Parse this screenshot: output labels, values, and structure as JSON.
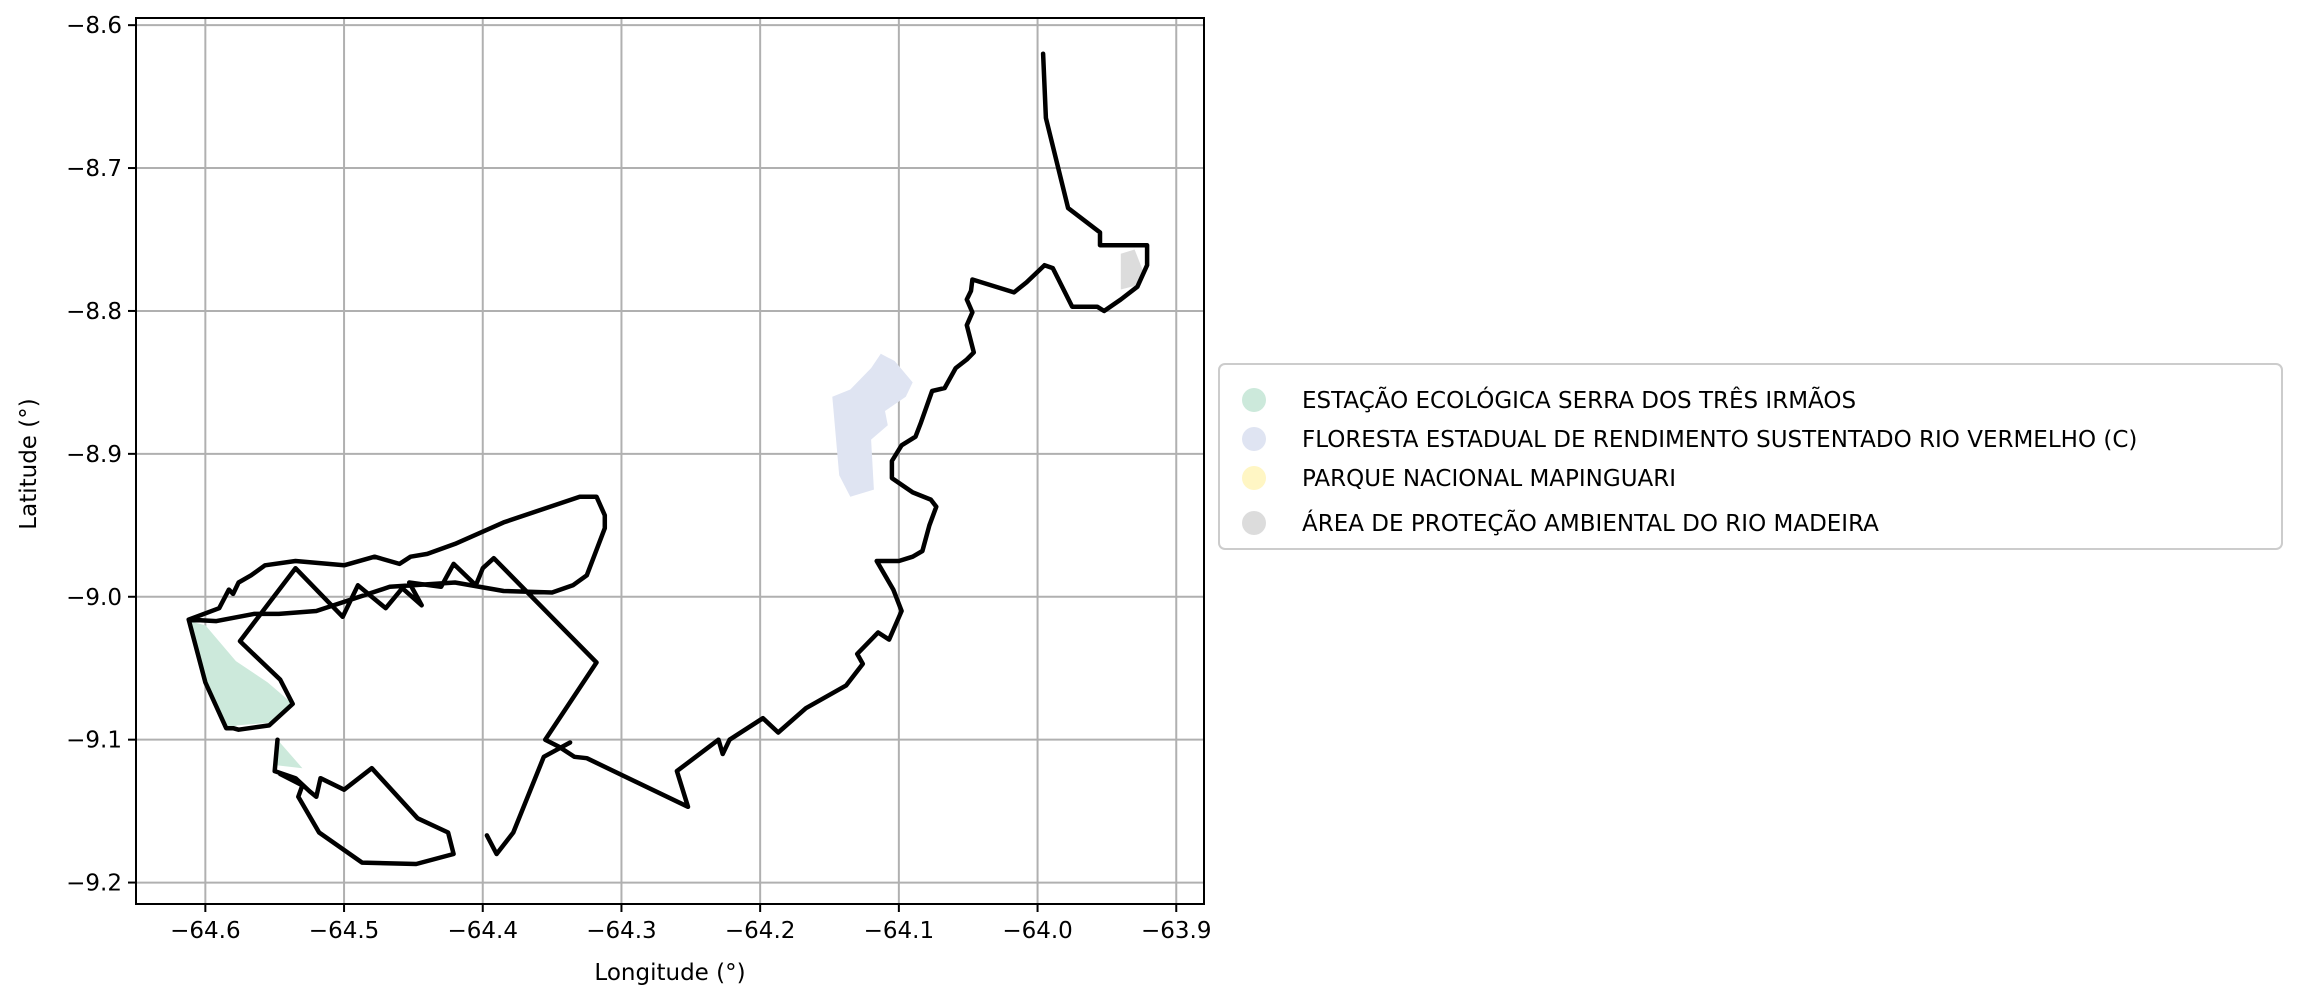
{
  "chart_data": {
    "type": "map",
    "xlabel": "Longitude (°)",
    "ylabel": "Latitude (°)",
    "xlim": [
      -64.65,
      -63.88
    ],
    "ylim": [
      -9.215,
      -8.595
    ],
    "x_ticks": [
      -64.6,
      -64.5,
      -64.4,
      -64.3,
      -64.2,
      -64.1,
      -64.0,
      -63.9
    ],
    "x_tick_labels": [
      "−64.6",
      "−64.5",
      "−64.4",
      "−64.3",
      "−64.2",
      "−64.1",
      "−64.0",
      "−63.9"
    ],
    "y_ticks": [
      -8.6,
      -8.7,
      -8.8,
      -8.9,
      -9.0,
      -9.1,
      -9.2
    ],
    "y_tick_labels": [
      "−8.6",
      "−8.7",
      "−8.8",
      "−8.9",
      "−9.0",
      "−9.1",
      "−9.2"
    ],
    "grid": true,
    "legend_position": "center-right outside",
    "legend": [
      {
        "label": "ESTAÇÃO ECOLÓGICA SERRA DOS TRÊS IRMÃOS",
        "color": "#cce9db"
      },
      {
        "label": "FLORESTA ESTADUAL DE RENDIMENTO SUSTENTADO RIO VERMELHO (C)",
        "color": "#dfe4f2"
      },
      {
        "label": "PARQUE NACIONAL MAPINGUARI",
        "color": "#fff6c4"
      },
      {
        "label": "ÁREA DE PROTEÇÃO AMBIENTAL DO RIO MADEIRA",
        "color": "#dcdcdc"
      }
    ],
    "boundary_color": "#000000",
    "filled_areas": [
      {
        "name": "ESTAÇÃO ECOLÓGICA SERRA DOS TRÊS IRMÃOS",
        "color": "#cce9db",
        "coords": [
          [
            -64.612,
            -9.017
          ],
          [
            -64.6,
            -9.02
          ],
          [
            -64.578,
            -9.045
          ],
          [
            -64.555,
            -9.06
          ],
          [
            -64.537,
            -9.075
          ],
          [
            -64.553,
            -9.088
          ],
          [
            -64.577,
            -9.09
          ],
          [
            -64.585,
            -9.093
          ],
          [
            -64.6,
            -9.06
          ]
        ]
      },
      {
        "name": "ESTAÇÃO ECOLÓGICA SERRA DOS TRÊS IRMÃOS",
        "color": "#cce9db",
        "coords": [
          [
            -64.548,
            -9.1
          ],
          [
            -64.53,
            -9.12
          ],
          [
            -64.548,
            -9.118
          ]
        ]
      },
      {
        "name": "FLORESTA ESTADUAL DE RENDIMENTO SUSTENTADO RIO VERMELHO (C)",
        "color": "#dfe4f2",
        "coords": [
          [
            -64.148,
            -8.86
          ],
          [
            -64.135,
            -8.855
          ],
          [
            -64.12,
            -8.84
          ],
          [
            -64.113,
            -8.83
          ],
          [
            -64.103,
            -8.835
          ],
          [
            -64.09,
            -8.85
          ],
          [
            -64.095,
            -8.86
          ],
          [
            -64.11,
            -8.87
          ],
          [
            -64.108,
            -8.88
          ],
          [
            -64.12,
            -8.89
          ],
          [
            -64.118,
            -8.925
          ],
          [
            -64.135,
            -8.93
          ],
          [
            -64.143,
            -8.915
          ]
        ]
      },
      {
        "name": "ÁREA DE PROTEÇÃO AMBIENTAL DO RIO MADEIRA",
        "color": "#dcdcdc",
        "coords": [
          [
            -63.94,
            -8.76
          ],
          [
            -63.93,
            -8.757
          ],
          [
            -63.924,
            -8.772
          ],
          [
            -63.928,
            -8.782
          ],
          [
            -63.94,
            -8.785
          ]
        ]
      }
    ],
    "boundaries": [
      [
        [
          -63.996,
          -8.62
        ],
        [
          -63.994,
          -8.665
        ],
        [
          -63.978,
          -8.728
        ],
        [
          -63.955,
          -8.745
        ],
        [
          -63.955,
          -8.754
        ],
        [
          -63.921,
          -8.754
        ],
        [
          -63.921,
          -8.768
        ],
        [
          -63.928,
          -8.783
        ],
        [
          -63.94,
          -8.792
        ],
        [
          -63.952,
          -8.8
        ],
        [
          -63.957,
          -8.797
        ],
        [
          -63.975,
          -8.797
        ],
        [
          -63.989,
          -8.77
        ],
        [
          -63.995,
          -8.768
        ],
        [
          -64.008,
          -8.78
        ],
        [
          -64.017,
          -8.787
        ],
        [
          -64.047,
          -8.778
        ],
        [
          -64.048,
          -8.786
        ],
        [
          -64.051,
          -8.792
        ],
        [
          -64.047,
          -8.801
        ],
        [
          -64.051,
          -8.81
        ],
        [
          -64.046,
          -8.829
        ],
        [
          -64.051,
          -8.834
        ],
        [
          -64.059,
          -8.84
        ],
        [
          -64.067,
          -8.854
        ],
        [
          -64.076,
          -8.856
        ],
        [
          -64.084,
          -8.878
        ],
        [
          -64.088,
          -8.888
        ],
        [
          -64.098,
          -8.894
        ],
        [
          -64.105,
          -8.905
        ],
        [
          -64.105,
          -8.917
        ],
        [
          -64.09,
          -8.927
        ],
        [
          -64.077,
          -8.932
        ],
        [
          -64.073,
          -8.937
        ],
        [
          -64.078,
          -8.95
        ],
        [
          -64.083,
          -8.968
        ],
        [
          -64.09,
          -8.972
        ],
        [
          -64.1,
          -8.975
        ],
        [
          -64.116,
          -8.975
        ],
        [
          -64.104,
          -8.995
        ],
        [
          -64.098,
          -9.01
        ],
        [
          -64.107,
          -9.03
        ],
        [
          -64.115,
          -9.025
        ],
        [
          -64.13,
          -9.04
        ],
        [
          -64.126,
          -9.047
        ],
        [
          -64.138,
          -9.062
        ],
        [
          -64.167,
          -9.078
        ],
        [
          -64.187,
          -9.095
        ],
        [
          -64.198,
          -9.085
        ],
        [
          -64.222,
          -9.1
        ],
        [
          -64.227,
          -9.11
        ],
        [
          -64.23,
          -9.1
        ],
        [
          -64.26,
          -9.122
        ],
        [
          -64.252,
          -9.147
        ],
        [
          -64.325,
          -9.113
        ],
        [
          -64.334,
          -9.112
        ],
        [
          -64.345,
          -9.105
        ],
        [
          -64.355,
          -9.1
        ],
        [
          -64.318,
          -9.046
        ],
        [
          -64.392,
          -8.973
        ],
        [
          -64.4,
          -8.98
        ],
        [
          -64.405,
          -8.992
        ],
        [
          -64.421,
          -8.977
        ],
        [
          -64.43,
          -8.993
        ],
        [
          -64.453,
          -8.99
        ],
        [
          -64.444,
          -9.006
        ],
        [
          -64.458,
          -8.994
        ],
        [
          -64.47,
          -9.008
        ],
        [
          -64.49,
          -8.992
        ],
        [
          -64.501,
          -9.014
        ],
        [
          -64.535,
          -8.98
        ],
        [
          -64.575,
          -9.031
        ],
        [
          -64.572,
          -9.034
        ],
        [
          -64.546,
          -9.058
        ],
        [
          -64.537,
          -9.075
        ],
        [
          -64.554,
          -9.09
        ],
        [
          -64.576,
          -9.093
        ],
        [
          -64.58,
          -9.092
        ],
        [
          -64.585,
          -9.092
        ],
        [
          -64.6,
          -9.06
        ],
        [
          -64.612,
          -9.016
        ],
        [
          -64.59,
          -9.008
        ],
        [
          -64.583,
          -8.995
        ],
        [
          -64.58,
          -8.998
        ],
        [
          -64.576,
          -8.99
        ],
        [
          -64.567,
          -8.985
        ],
        [
          -64.557,
          -8.978
        ],
        [
          -64.535,
          -8.975
        ],
        [
          -64.5,
          -8.978
        ],
        [
          -64.478,
          -8.972
        ],
        [
          -64.46,
          -8.977
        ],
        [
          -64.452,
          -8.972
        ],
        [
          -64.44,
          -8.97
        ],
        [
          -64.42,
          -8.963
        ],
        [
          -64.385,
          -8.948
        ],
        [
          -64.33,
          -8.93
        ],
        [
          -64.318,
          -8.93
        ],
        [
          -64.312,
          -8.943
        ],
        [
          -64.312,
          -8.952
        ],
        [
          -64.325,
          -8.985
        ],
        [
          -64.335,
          -8.992
        ],
        [
          -64.35,
          -8.997
        ],
        [
          -64.385,
          -8.996
        ],
        [
          -64.42,
          -8.99
        ],
        [
          -64.467,
          -8.993
        ],
        [
          -64.52,
          -9.01
        ],
        [
          -64.547,
          -9.012
        ],
        [
          -64.565,
          -9.012
        ],
        [
          -64.592,
          -9.017
        ],
        [
          -64.612,
          -9.016
        ]
      ],
      [
        [
          -64.548,
          -9.1
        ],
        [
          -64.55,
          -9.122
        ],
        [
          -64.535,
          -9.127
        ],
        [
          -64.525,
          -9.136
        ],
        [
          -64.52,
          -9.14
        ],
        [
          -64.517,
          -9.127
        ],
        [
          -64.5,
          -9.135
        ],
        [
          -64.48,
          -9.12
        ],
        [
          -64.447,
          -9.155
        ],
        [
          -64.425,
          -9.165
        ],
        [
          -64.421,
          -9.18
        ],
        [
          -64.448,
          -9.187
        ],
        [
          -64.487,
          -9.186
        ],
        [
          -64.518,
          -9.165
        ],
        [
          -64.533,
          -9.14
        ],
        [
          -64.53,
          -9.132
        ],
        [
          -64.546,
          -9.124
        ]
      ],
      [
        [
          -64.397,
          -9.167
        ],
        [
          -64.39,
          -9.18
        ],
        [
          -64.378,
          -9.165
        ],
        [
          -64.356,
          -9.112
        ],
        [
          -64.337,
          -9.102
        ]
      ]
    ]
  }
}
